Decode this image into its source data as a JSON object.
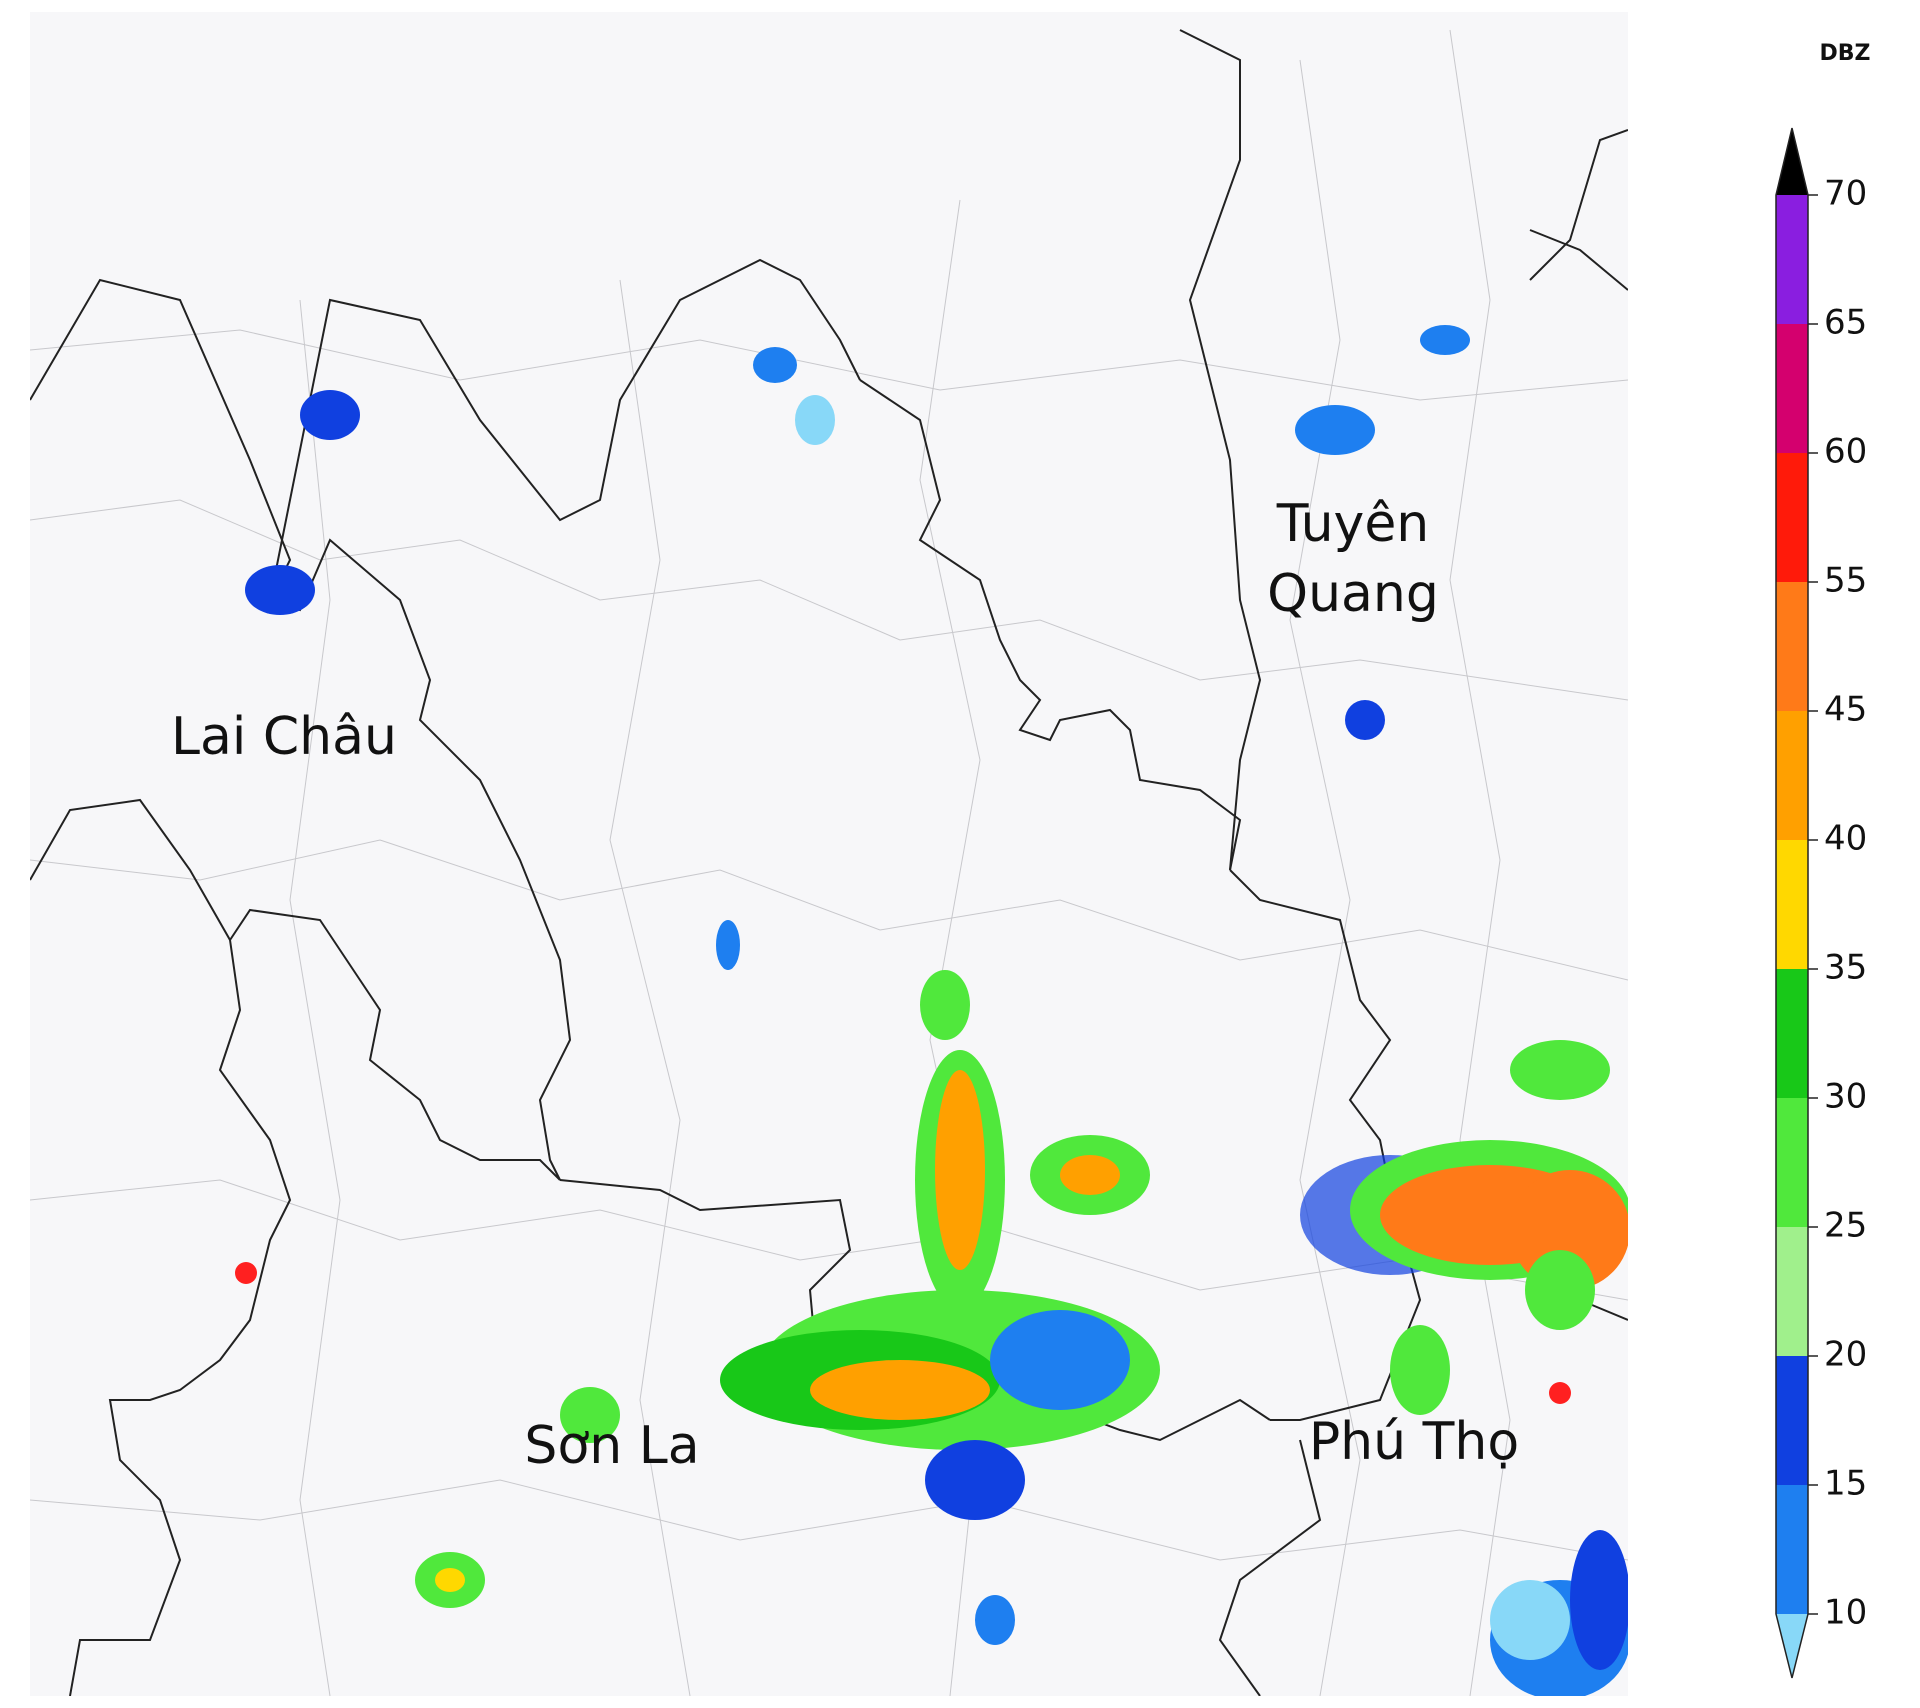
{
  "map_labels": [
    {
      "lines": [
        "Tuyên",
        "Quang"
      ]
    },
    {
      "lines": [
        "Lai Châu"
      ]
    },
    {
      "lines": [
        "Sơn La"
      ]
    },
    {
      "lines": [
        "Phú Thọ"
      ]
    }
  ],
  "colorbar": {
    "title": "DBZ",
    "ticks": [
      10,
      15,
      20,
      25,
      30,
      35,
      40,
      45,
      55,
      60,
      65,
      70
    ],
    "colors": [
      "#1e7ff0",
      "#1040e0",
      "#a0f08c",
      "#50e83c",
      "#18c818",
      "#ffd800",
      "#ffa000",
      "#ff7a18",
      "#ff1a0a",
      "#d4006e",
      "#8a1ee0"
    ],
    "under_color": "#88d8f8",
    "over_color": "#000000"
  }
}
